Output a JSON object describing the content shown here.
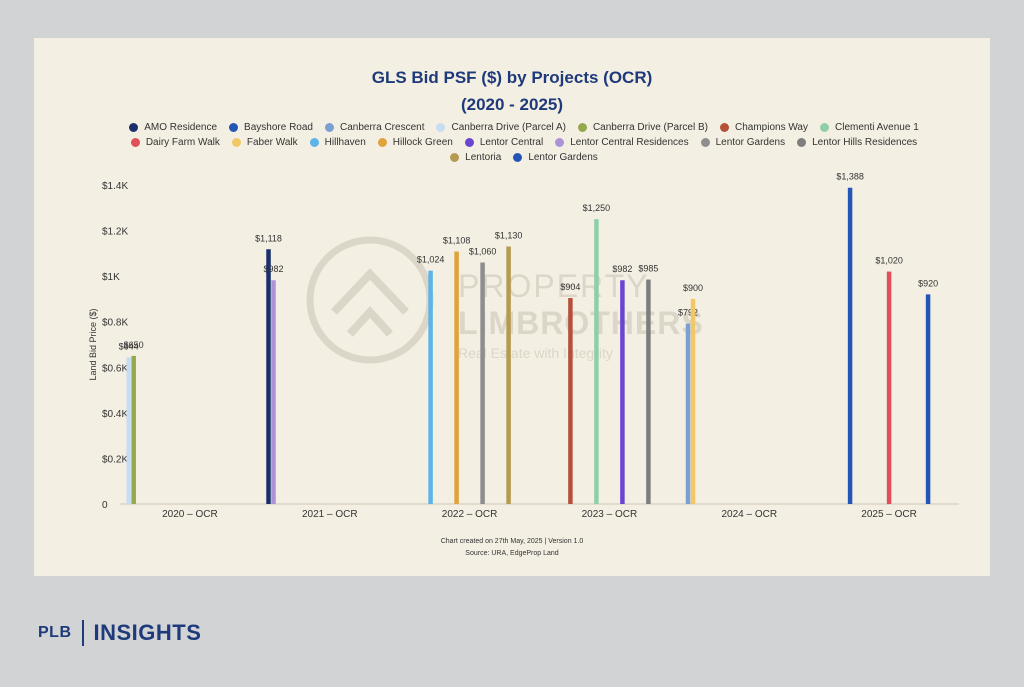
{
  "brand": {
    "plb": "PLB",
    "insights": "INSIGHTS",
    "color": "#1e3a7b"
  },
  "chart_data": {
    "type": "bar",
    "title": "GLS Bid PSF ($) by Projects (OCR)",
    "subtitle": "(2020 - 2025)",
    "ylabel": "Land Bid Price ($)",
    "xlabel": "",
    "ylim": [
      0,
      1400
    ],
    "yticks": [
      {
        "value": 0,
        "label": "0"
      },
      {
        "value": 200,
        "label": "$0.2K"
      },
      {
        "value": 400,
        "label": "$0.4K"
      },
      {
        "value": 600,
        "label": "$0.6K"
      },
      {
        "value": 800,
        "label": "$0.8K"
      },
      {
        "value": 1000,
        "label": "$1K"
      },
      {
        "value": 1200,
        "label": "$1.2K"
      },
      {
        "value": 1400,
        "label": "$1.4K"
      }
    ],
    "grid": false,
    "legend_position": "top",
    "categories": [
      "2020 – OCR",
      "2021 – OCR",
      "2022 – OCR",
      "2023 – OCR",
      "2024 – OCR",
      "2025 – OCR"
    ],
    "series": [
      {
        "name": "AMO Residence",
        "color": "#1a2f6b",
        "points": [
          {
            "cat": 1,
            "value": 1118,
            "label": "$1,118"
          }
        ]
      },
      {
        "name": "Bayshore Road",
        "color": "#2356b5",
        "points": [
          {
            "cat": 5,
            "value": 1388,
            "label": "$1,388"
          }
        ]
      },
      {
        "name": "Canberra Crescent",
        "color": "#7a9fd0",
        "points": [
          {
            "cat": 4,
            "value": 792,
            "label": "$792"
          }
        ]
      },
      {
        "name": "Canberra Drive (Parcel A)",
        "color": "#c6ddf2",
        "points": [
          {
            "cat": 0,
            "value": 644,
            "label": "$644"
          }
        ]
      },
      {
        "name": "Canberra Drive (Parcel B)",
        "color": "#95a84e",
        "points": [
          {
            "cat": 0,
            "value": 650,
            "label": "$650"
          }
        ]
      },
      {
        "name": "Champions Way",
        "color": "#b5513a",
        "points": [
          {
            "cat": 3,
            "value": 904,
            "label": "$904"
          }
        ]
      },
      {
        "name": "Clementi Avenue 1",
        "color": "#8fcfa8",
        "points": [
          {
            "cat": 3,
            "value": 1250,
            "label": "$1,250"
          }
        ]
      },
      {
        "name": "Dairy Farm Walk",
        "color": "#e0505a",
        "points": [
          {
            "cat": 5,
            "value": 1020,
            "label": "$1,020"
          }
        ]
      },
      {
        "name": "Faber Walk",
        "color": "#f2c766",
        "points": [
          {
            "cat": 4,
            "value": 900,
            "label": "$900"
          }
        ]
      },
      {
        "name": "Hillhaven",
        "color": "#5cb4e8",
        "points": [
          {
            "cat": 2,
            "value": 1024,
            "label": "$1,024"
          }
        ]
      },
      {
        "name": "Hillock Green",
        "color": "#e0a23a",
        "points": [
          {
            "cat": 2,
            "value": 1108,
            "label": "$1,108"
          }
        ]
      },
      {
        "name": "Lentor Central",
        "color": "#6a45d0",
        "points": [
          {
            "cat": 3,
            "value": 982,
            "label": "$982"
          }
        ]
      },
      {
        "name": "Lentor Central Residences",
        "color": "#ad92d6",
        "points": [
          {
            "cat": 1,
            "value": 982,
            "label": "$982"
          }
        ]
      },
      {
        "name": "Lentor Gardens",
        "color": "#8e8e8e",
        "points": [
          {
            "cat": 2,
            "value": 1060,
            "label": "$1,060"
          }
        ]
      },
      {
        "name": "Lentor Hills Residences",
        "color": "#7e7e7e",
        "points": [
          {
            "cat": 3,
            "value": 985,
            "label": "$985"
          }
        ]
      },
      {
        "name": "Lentoria",
        "color": "#b59a52",
        "points": [
          {
            "cat": 2,
            "value": 1130,
            "label": "$1,130"
          }
        ]
      },
      {
        "name": "Lentor Gardens",
        "color": "#2356b5",
        "points": [
          {
            "cat": 5,
            "value": 920,
            "label": "$920"
          }
        ]
      }
    ],
    "watermark": {
      "line1": "PROPERTY",
      "line2": "LIMBROTHERS",
      "line3": "Real Estate with Integrity"
    },
    "footer": {
      "line1": "Chart created on 27th May, 2025 | Version 1.0",
      "line2": "Source: URA, EdgeProp Land"
    }
  }
}
